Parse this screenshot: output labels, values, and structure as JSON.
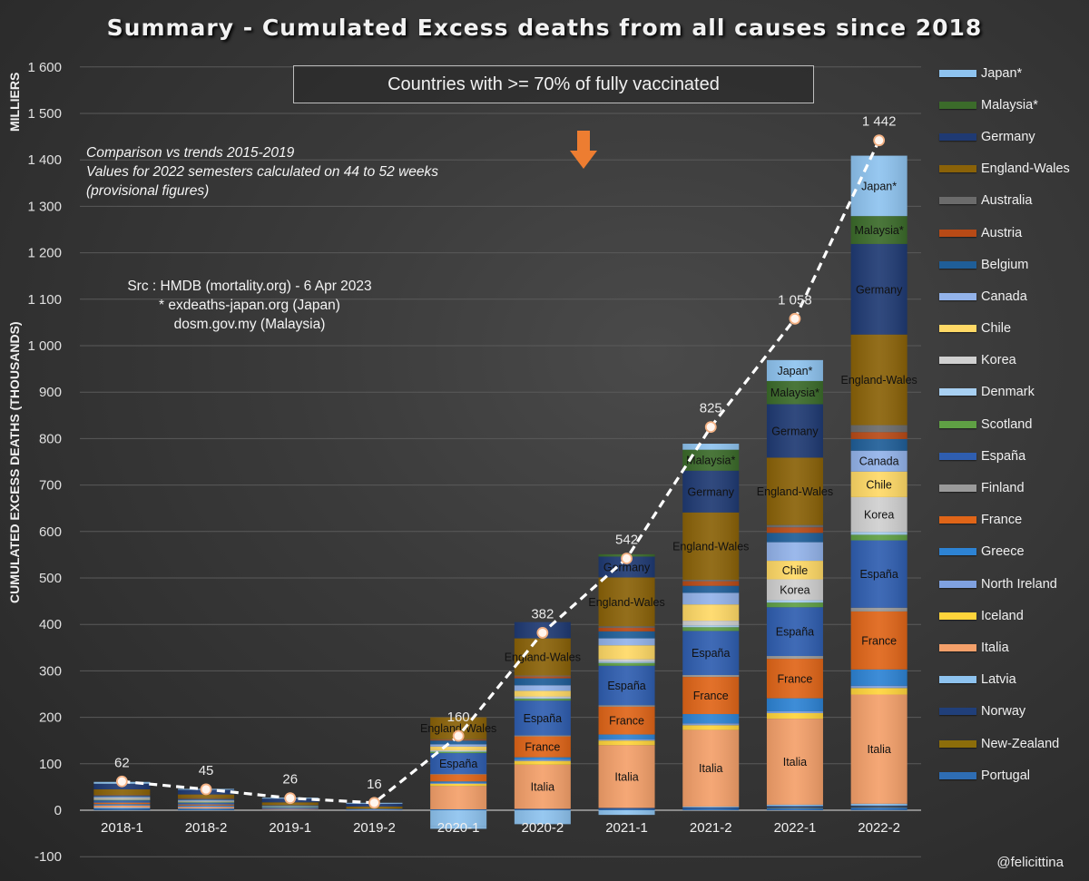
{
  "chart_data": {
    "type": "bar",
    "stacked": true,
    "title": "Summary - Cumulated Excess deaths from all causes since 2018",
    "ylabel": "CUMULATED EXCESS DEATHS (THOUSANDS)",
    "ylabel_unit": "MILLIERS",
    "xlabel": "",
    "ylim": [
      -100,
      1600
    ],
    "yticks": [
      -100,
      0,
      100,
      200,
      300,
      400,
      500,
      600,
      700,
      800,
      900,
      1000,
      1100,
      1200,
      1300,
      1400,
      1500,
      1600
    ],
    "ytick_labels": [
      "-100",
      "0",
      "100",
      "200",
      "300",
      "400",
      "500",
      "600",
      "700",
      "800",
      "900",
      "1 000",
      "1 100",
      "1 200",
      "1 300",
      "1 400",
      "1 500",
      "1 600"
    ],
    "grid": true,
    "legend_position": "right",
    "categories": [
      "2018-1",
      "2018-2",
      "2019-1",
      "2019-2",
      "2020-1",
      "2020-2",
      "2021-1",
      "2021-2",
      "2022-1",
      "2022-2"
    ],
    "totals": [
      62,
      45,
      26,
      16,
      160,
      382,
      542,
      825,
      1058,
      1442
    ],
    "total_labels": [
      "62",
      "45",
      "26",
      "16",
      "160",
      "382",
      "542",
      "825",
      "1 058",
      "1 442"
    ],
    "total_line": {
      "name": "Total",
      "style": "dashed",
      "color": "#ffffff",
      "marker_color": "#f4b183"
    },
    "series": [
      {
        "name": "Portugal",
        "color": "#2e6db4",
        "values": [
          3,
          2,
          1,
          0,
          2,
          2,
          3,
          4,
          5,
          6
        ]
      },
      {
        "name": "New-Zealand",
        "color": "#8c6d0a",
        "values": [
          0,
          0,
          0,
          0,
          0,
          0,
          0,
          0,
          1,
          1
        ]
      },
      {
        "name": "Norway",
        "color": "#203f7a",
        "values": [
          1,
          1,
          0,
          0,
          0,
          1,
          2,
          2,
          3,
          3
        ]
      },
      {
        "name": "Latvia",
        "color": "#8ec3ef",
        "values": [
          2,
          1,
          0,
          0,
          -35,
          -30,
          -10,
          2,
          3,
          4
        ]
      },
      {
        "name": "Italia",
        "color": "#f4a06a",
        "values": [
          4,
          3,
          1,
          0,
          50,
          95,
          135,
          165,
          185,
          235
        ]
      },
      {
        "name": "Iceland",
        "color": "#ffd43b",
        "values": [
          0,
          0,
          0,
          0,
          5,
          8,
          10,
          10,
          12,
          14
        ]
      },
      {
        "name": "North Ireland",
        "color": "#7fa1e0",
        "values": [
          1,
          1,
          0,
          0,
          2,
          3,
          3,
          4,
          4,
          5
        ]
      },
      {
        "name": "Greece",
        "color": "#2d83d4",
        "values": [
          2,
          2,
          1,
          0,
          3,
          5,
          10,
          20,
          28,
          35
        ]
      },
      {
        "name": "France",
        "color": "#e06518",
        "values": [
          3,
          2,
          1,
          0,
          15,
          45,
          60,
          80,
          85,
          125
        ]
      },
      {
        "name": "Finland",
        "color": "#9a9a9a",
        "values": [
          1,
          1,
          0,
          0,
          1,
          2,
          3,
          4,
          6,
          8
        ]
      },
      {
        "name": "España",
        "color": "#2f5eb0",
        "values": [
          4,
          3,
          2,
          1,
          45,
          75,
          85,
          95,
          105,
          145
        ]
      },
      {
        "name": "Scotland",
        "color": "#5fa044",
        "values": [
          1,
          1,
          1,
          0,
          3,
          4,
          6,
          8,
          10,
          12
        ]
      },
      {
        "name": "Denmark",
        "color": "#a8d0f2",
        "values": [
          1,
          1,
          0,
          0,
          1,
          2,
          3,
          4,
          5,
          6
        ]
      },
      {
        "name": "Korea",
        "color": "#d0d0d0",
        "values": [
          2,
          1,
          1,
          0,
          2,
          3,
          5,
          10,
          45,
          75
        ]
      },
      {
        "name": "Chile",
        "color": "#ffd966",
        "values": [
          1,
          1,
          0,
          0,
          8,
          12,
          30,
          35,
          40,
          55
        ]
      },
      {
        "name": "Canada",
        "color": "#93b3ea",
        "values": [
          3,
          2,
          1,
          1,
          5,
          12,
          15,
          25,
          40,
          45
        ]
      },
      {
        "name": "Belgium",
        "color": "#1f5e98",
        "values": [
          2,
          2,
          1,
          1,
          8,
          15,
          15,
          15,
          20,
          25
        ]
      },
      {
        "name": "Austria",
        "color": "#b84a16",
        "values": [
          1,
          1,
          0,
          0,
          2,
          4,
          8,
          10,
          12,
          15
        ]
      },
      {
        "name": "Australia",
        "color": "#6b6b6b",
        "values": [
          1,
          1,
          1,
          0,
          1,
          2,
          3,
          3,
          5,
          15
        ]
      },
      {
        "name": "England-Wales",
        "color": "#8a6208",
        "values": [
          12,
          8,
          6,
          5,
          47,
          80,
          105,
          145,
          145,
          195
        ]
      },
      {
        "name": "Germany",
        "color": "#1f3a73",
        "values": [
          12,
          10,
          8,
          6,
          0,
          35,
          45,
          90,
          115,
          195
        ]
      },
      {
        "name": "Malaysia*",
        "color": "#3b6b2a",
        "values": [
          0,
          0,
          0,
          0,
          0,
          0,
          5,
          45,
          50,
          60
        ]
      },
      {
        "name": "Japan*",
        "color": "#8ec3ef",
        "values": [
          4,
          2,
          2,
          2,
          -5,
          0,
          0,
          13,
          45,
          130
        ]
      }
    ],
    "segment_labels": [
      {
        "category": "2020-1",
        "series": "España",
        "text": "España"
      },
      {
        "category": "2020-1",
        "series": "England-Wales",
        "text": "England-Wales"
      },
      {
        "category": "2020-2",
        "series": "Italia",
        "text": "Italia"
      },
      {
        "category": "2020-2",
        "series": "France",
        "text": "France"
      },
      {
        "category": "2020-2",
        "series": "España",
        "text": "España"
      },
      {
        "category": "2020-2",
        "series": "England-Wales",
        "text": "England-Wales"
      },
      {
        "category": "2021-1",
        "series": "Italia",
        "text": "Italia"
      },
      {
        "category": "2021-1",
        "series": "France",
        "text": "France"
      },
      {
        "category": "2021-1",
        "series": "España",
        "text": "España"
      },
      {
        "category": "2021-1",
        "series": "England-Wales",
        "text": "England-Wales"
      },
      {
        "category": "2021-1",
        "series": "Germany",
        "text": "Germany"
      },
      {
        "category": "2021-2",
        "series": "Italia",
        "text": "Italia"
      },
      {
        "category": "2021-2",
        "series": "France",
        "text": "France"
      },
      {
        "category": "2021-2",
        "series": "España",
        "text": "España"
      },
      {
        "category": "2021-2",
        "series": "England-Wales",
        "text": "England-Wales"
      },
      {
        "category": "2021-2",
        "series": "Germany",
        "text": "Germany"
      },
      {
        "category": "2021-2",
        "series": "Malaysia*",
        "text": "Malaysia*"
      },
      {
        "category": "2022-1",
        "series": "Italia",
        "text": "Italia"
      },
      {
        "category": "2022-1",
        "series": "France",
        "text": "France"
      },
      {
        "category": "2022-1",
        "series": "España",
        "text": "España"
      },
      {
        "category": "2022-1",
        "series": "Korea",
        "text": "Korea"
      },
      {
        "category": "2022-1",
        "series": "Chile",
        "text": "Chile"
      },
      {
        "category": "2022-1",
        "series": "England-Wales",
        "text": "England-Wales"
      },
      {
        "category": "2022-1",
        "series": "Germany",
        "text": "Germany"
      },
      {
        "category": "2022-1",
        "series": "Malaysia*",
        "text": "Malaysia*"
      },
      {
        "category": "2022-1",
        "series": "Japan*",
        "text": "Japan*"
      },
      {
        "category": "2022-2",
        "series": "Italia",
        "text": "Italia"
      },
      {
        "category": "2022-2",
        "series": "France",
        "text": "France"
      },
      {
        "category": "2022-2",
        "series": "España",
        "text": "España"
      },
      {
        "category": "2022-2",
        "series": "Korea",
        "text": "Korea"
      },
      {
        "category": "2022-2",
        "series": "Chile",
        "text": "Chile"
      },
      {
        "category": "2022-2",
        "series": "Canada",
        "text": "Canada"
      },
      {
        "category": "2022-2",
        "series": "England-Wales",
        "text": "England-Wales"
      },
      {
        "category": "2022-2",
        "series": "Germany",
        "text": "Germany"
      },
      {
        "category": "2022-2",
        "series": "Malaysia*",
        "text": "Malaysia*"
      },
      {
        "category": "2022-2",
        "series": "Japan*",
        "text": "Japan*"
      }
    ],
    "legend_order": [
      "Japan*",
      "Malaysia*",
      "Germany",
      "England-Wales",
      "Australia",
      "Austria",
      "Belgium",
      "Canada",
      "Chile",
      "Korea",
      "Denmark",
      "Scotland",
      "España",
      "Finland",
      "France",
      "Greece",
      "North Ireland",
      "Iceland",
      "Italia",
      "Latvia",
      "Norway",
      "New-Zealand",
      "Portugal"
    ],
    "annotations": {
      "vaccination_box": "Countries with >= 70% of fully vaccinated",
      "arrow": "down-arrow",
      "arrow_color": "#ed7d31",
      "notes": [
        "Comparison vs trends 2015-2019",
        "Values for 2022 semesters calculated on 44 to 52 weeks",
        "(provisional figures)"
      ],
      "source": [
        "Src : HMDB (mortality.org) - 6 Apr 2023",
        "* exdeaths-japan.org (Japan)",
        "dosm.gov.my (Malaysia)"
      ],
      "credit": "@felicittina"
    }
  }
}
